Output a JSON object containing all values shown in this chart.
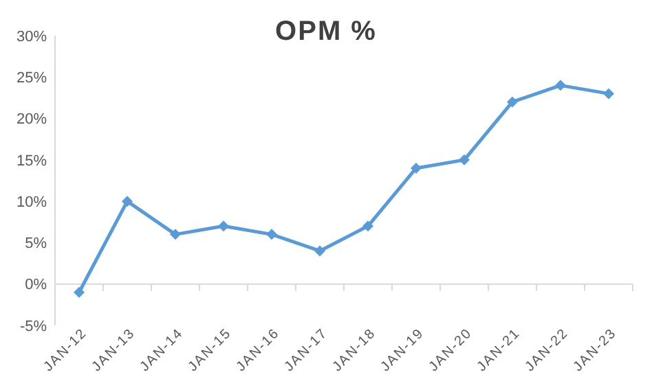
{
  "chart_data": {
    "type": "line",
    "title": "OPM %",
    "categories": [
      "JAN-12",
      "JAN-13",
      "JAN-14",
      "JAN-15",
      "JAN-16",
      "JAN-17",
      "JAN-18",
      "JAN-19",
      "JAN-20",
      "JAN-21",
      "JAN-22",
      "JAN-23"
    ],
    "series": [
      {
        "color": "#5b9bd5",
        "values": [
          -1,
          10,
          6,
          7,
          6,
          4,
          7,
          14,
          15,
          22,
          24,
          23
        ]
      }
    ],
    "ylim": [
      -5,
      30
    ],
    "yticks": [
      {
        "value": -5,
        "label": "-5%"
      },
      {
        "value": 0,
        "label": "0%"
      },
      {
        "value": 5,
        "label": "5%"
      },
      {
        "value": 10,
        "label": "10%"
      },
      {
        "value": 15,
        "label": "15%"
      },
      {
        "value": 20,
        "label": "20%"
      },
      {
        "value": 25,
        "label": "25%"
      },
      {
        "value": 30,
        "label": "30%"
      }
    ],
    "marker": "diamond",
    "line_style": "solid"
  }
}
